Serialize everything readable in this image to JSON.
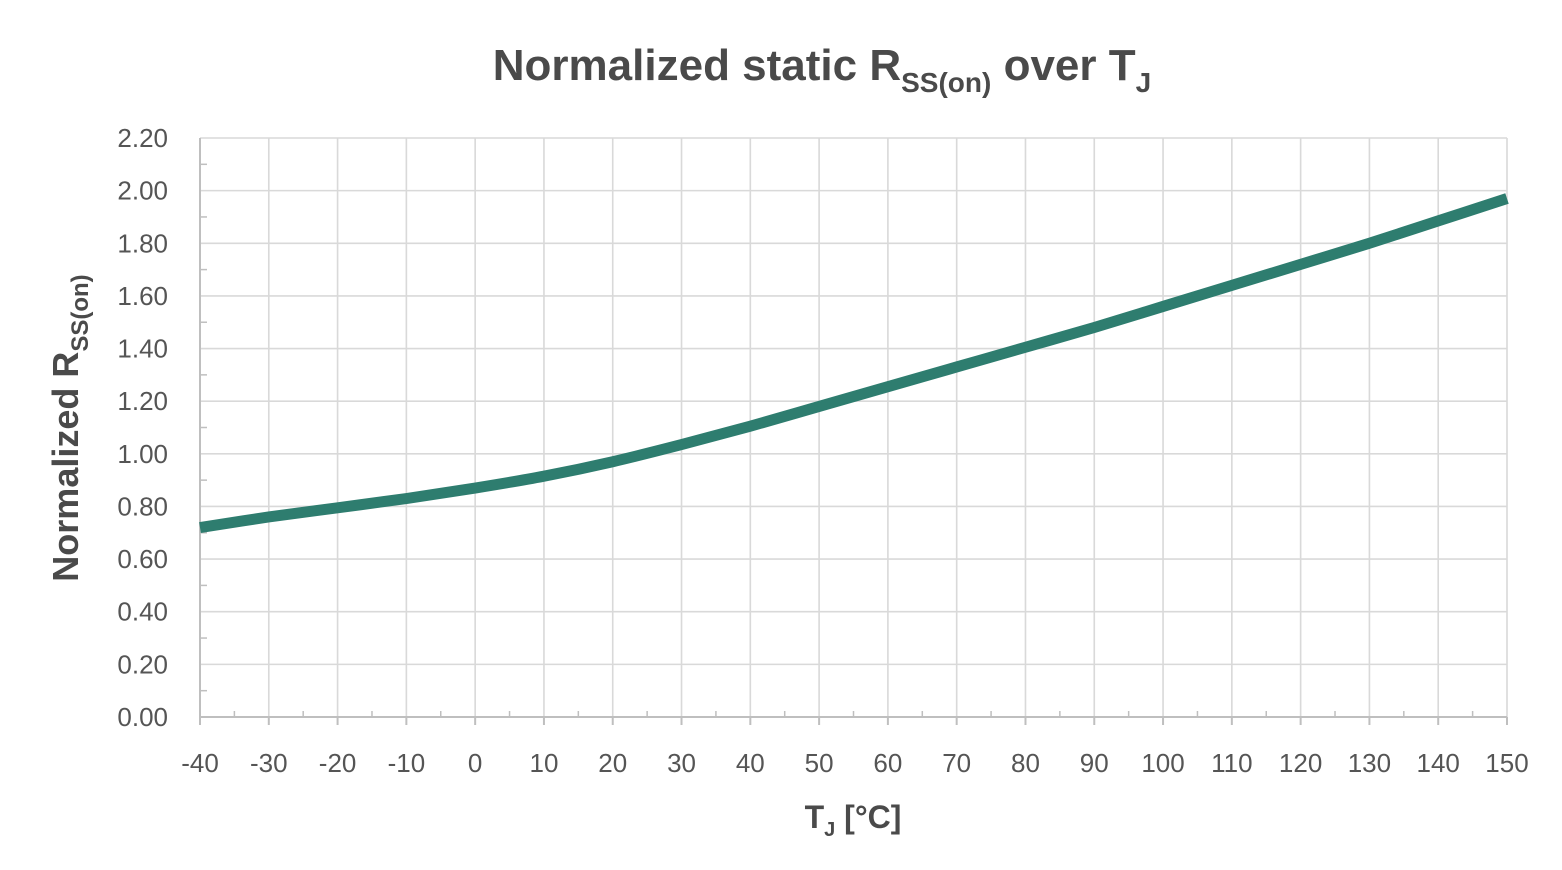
{
  "chart_data": {
    "type": "line",
    "title": {
      "main": "Normalized static R",
      "sub": "SS(on)",
      "tail": " over T",
      "tail_sub": "J"
    },
    "xlabel": {
      "main": "T",
      "sub": "J",
      "tail": " [°C]"
    },
    "ylabel": {
      "main": "Normalized R",
      "sub": "SS(on)"
    },
    "xlim": [
      -40,
      150
    ],
    "ylim": [
      0,
      2.2
    ],
    "x_ticks": [
      "-40",
      "-30",
      "-20",
      "-10",
      "0",
      "10",
      "20",
      "30",
      "40",
      "50",
      "60",
      "70",
      "80",
      "90",
      "100",
      "110",
      "120",
      "130",
      "140",
      "150"
    ],
    "y_ticks": [
      "0.00",
      "0.20",
      "0.40",
      "0.60",
      "0.80",
      "1.00",
      "1.20",
      "1.40",
      "1.60",
      "1.80",
      "2.00",
      "2.20"
    ],
    "grid": true,
    "series": [
      {
        "color": "#2e7d6f",
        "x": [
          -40,
          -30,
          -20,
          -10,
          0,
          10,
          20,
          30,
          40,
          50,
          60,
          70,
          80,
          90,
          100,
          110,
          120,
          130,
          140,
          150
        ],
        "y": [
          0.72,
          0.76,
          0.795,
          0.83,
          0.87,
          0.915,
          0.97,
          1.035,
          1.105,
          1.18,
          1.255,
          1.33,
          1.405,
          1.48,
          1.56,
          1.64,
          1.72,
          1.8,
          1.885,
          1.97
        ]
      }
    ]
  }
}
